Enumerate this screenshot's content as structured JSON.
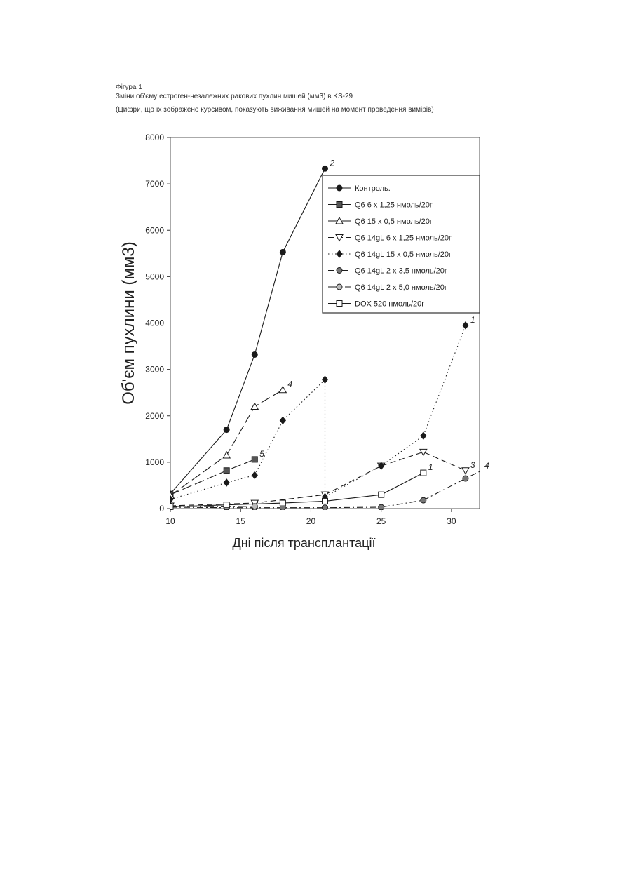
{
  "figure": {
    "label": "Фігура 1",
    "title": "Зміни об'єму естроген-незалежних ракових пухлин  мишей (мм3) в KS-29",
    "note": "(Цифри, що їх зображено курсивом, показують виживання мишей на момент проведення вимірів)"
  },
  "chart_data": {
    "type": "line",
    "xlabel": "Дні після трансплантації",
    "ylabel": "Об'єм пухлини (мм3)",
    "xlim": [
      10,
      32
    ],
    "ylim": [
      0,
      8000
    ],
    "xticks": [
      10,
      15,
      20,
      25,
      30
    ],
    "yticks": [
      0,
      1000,
      2000,
      3000,
      4000,
      5000,
      6000,
      7000,
      8000
    ],
    "grid": false,
    "legend_position": "top-right",
    "series": [
      {
        "name": "Контроль.",
        "marker": "filled-circle",
        "dash": "solid",
        "color": "#1a1a1a",
        "x": [
          10,
          14,
          16,
          18,
          21
        ],
        "y": [
          320,
          1700,
          3320,
          5530,
          7330
        ]
      },
      {
        "name": "Q6 6 x 1,25 нмоль/20г",
        "marker": "filled-square",
        "dash": "long-dash",
        "color": "#1a1a1a",
        "x": [
          10,
          14,
          16
        ],
        "y": [
          300,
          820,
          1060
        ]
      },
      {
        "name": "Q6 15 x 0,5 нмоль/20г",
        "marker": "open-triangle-up",
        "dash": "long-dash",
        "color": "#1a1a1a",
        "x": [
          10,
          14,
          16,
          18
        ],
        "y": [
          280,
          1150,
          2200,
          2560
        ]
      },
      {
        "name": "Q6 14gL 6 x 1,25 нмоль/20г",
        "marker": "open-triangle-down",
        "dash": "dash",
        "color": "#1a1a1a",
        "x": [
          10,
          16,
          21,
          25,
          28,
          31
        ],
        "y": [
          60,
          120,
          300,
          920,
          1220,
          820
        ]
      },
      {
        "name": "Q6 14gL 15 x 0,5 нмоль/20г",
        "marker": "filled-diamond",
        "dash": "dotted",
        "color": "#1a1a1a",
        "x": [
          10,
          14,
          16,
          18,
          21,
          21,
          25,
          28,
          31
        ],
        "y": [
          200,
          560,
          720,
          1900,
          2780,
          250,
          920,
          1570,
          3950
        ]
      },
      {
        "name": "Q6 14gL 2 x 3,5 нмоль/20г",
        "marker": "filled-circle-grey",
        "dash": "dash-dot",
        "color": "#1a1a1a",
        "x": [
          10,
          14,
          16,
          18,
          21,
          25,
          28,
          31,
          32
        ],
        "y": [
          30,
          20,
          20,
          20,
          20,
          30,
          180,
          650,
          800
        ]
      },
      {
        "name": "Q6 14gL 2 x 5,0 нмоль/20г",
        "marker": "open-circle-dot",
        "dash": "long-dash-dot",
        "color": "#1a1a1a",
        "x": [
          10,
          14,
          16
        ],
        "y": [
          50,
          40,
          50
        ]
      },
      {
        "name": "DOX 520 нмоль/20г",
        "marker": "open-square",
        "dash": "solid",
        "color": "#1a1a1a",
        "x": [
          10,
          14,
          18,
          21,
          25,
          28
        ],
        "y": [
          40,
          80,
          120,
          160,
          300,
          770
        ]
      }
    ],
    "annotations": [
      {
        "text": "2",
        "x": 21,
        "y": 7330
      },
      {
        "text": "4",
        "x": 18,
        "y": 2560
      },
      {
        "text": "5",
        "x": 16,
        "y": 1060
      },
      {
        "text": "1",
        "x": 31,
        "y": 3950
      },
      {
        "text": "3",
        "x": 31,
        "y": 820
      },
      {
        "text": "1",
        "x": 28,
        "y": 770
      },
      {
        "text": "4",
        "x": 32,
        "y": 800
      }
    ]
  }
}
